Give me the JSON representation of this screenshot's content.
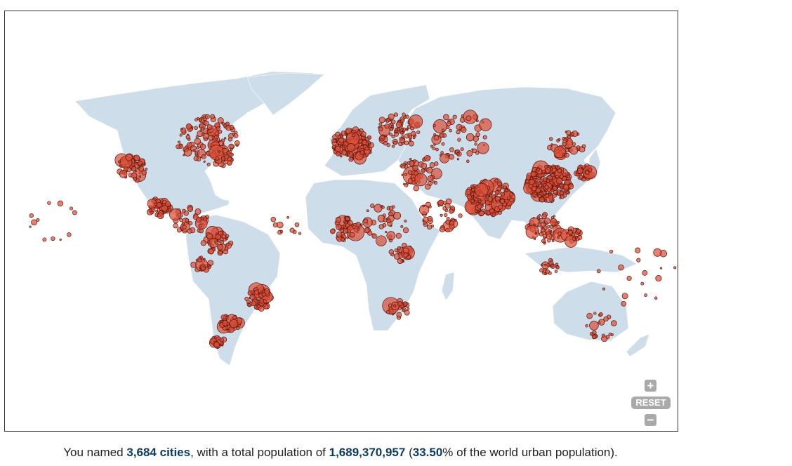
{
  "map": {
    "controls": {
      "zoom_in_label": "+",
      "reset_label": "RESET",
      "zoom_out_label": "−"
    },
    "colors": {
      "land": "#cddde9",
      "city_fill": "#d9503a",
      "city_stroke": "#5a1208",
      "stat_text": "#0e3c64",
      "control_bg": "#a9a9a9"
    }
  },
  "summary": {
    "prefix": "You named ",
    "cities": "3,684 cities",
    "middle": ", with a total population of ",
    "population": "1,689,370,957",
    "open_paren": " (",
    "percent": "33.50",
    "suffix": "% of the world urban population)."
  }
}
